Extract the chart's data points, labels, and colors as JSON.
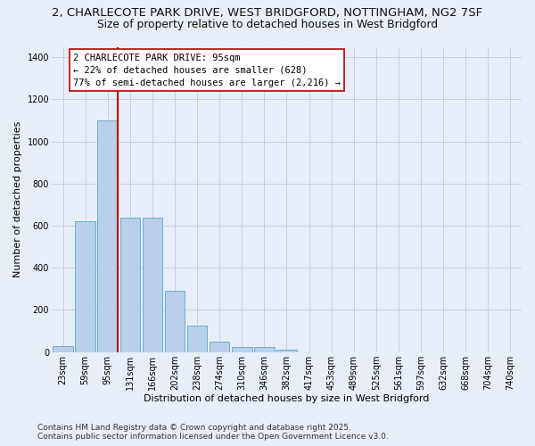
{
  "title_line1": "2, CHARLECOTE PARK DRIVE, WEST BRIDGFORD, NOTTINGHAM, NG2 7SF",
  "title_line2": "Size of property relative to detached houses in West Bridgford",
  "xlabel": "Distribution of detached houses by size in West Bridgford",
  "ylabel": "Number of detached properties",
  "categories": [
    "23sqm",
    "59sqm",
    "95sqm",
    "131sqm",
    "166sqm",
    "202sqm",
    "238sqm",
    "274sqm",
    "310sqm",
    "346sqm",
    "382sqm",
    "417sqm",
    "453sqm",
    "489sqm",
    "525sqm",
    "561sqm",
    "597sqm",
    "632sqm",
    "668sqm",
    "704sqm",
    "740sqm"
  ],
  "values": [
    30,
    620,
    1100,
    640,
    640,
    290,
    125,
    50,
    25,
    25,
    10,
    0,
    0,
    0,
    0,
    0,
    0,
    0,
    0,
    0,
    0
  ],
  "bar_color": "#b8d0ea",
  "bar_edge_color": "#6aaed6",
  "highlight_index": 2,
  "highlight_color": "#bb0000",
  "annotation_text": "2 CHARLECOTE PARK DRIVE: 95sqm\n← 22% of detached houses are smaller (628)\n77% of semi-detached houses are larger (2,216) →",
  "annotation_box_color": "#ffffff",
  "annotation_box_edge": "#bb0000",
  "ylim": [
    0,
    1450
  ],
  "yticks": [
    0,
    200,
    400,
    600,
    800,
    1000,
    1200,
    1400
  ],
  "bg_color": "#e8eef8",
  "grid_color": "#c8d0e0",
  "footer": "Contains HM Land Registry data © Crown copyright and database right 2025.\nContains public sector information licensed under the Open Government Licence v3.0.",
  "title_fontsize": 9.5,
  "subtitle_fontsize": 8.8,
  "axis_label_fontsize": 8,
  "tick_fontsize": 7,
  "footer_fontsize": 6.5,
  "annotation_fontsize": 7.5
}
